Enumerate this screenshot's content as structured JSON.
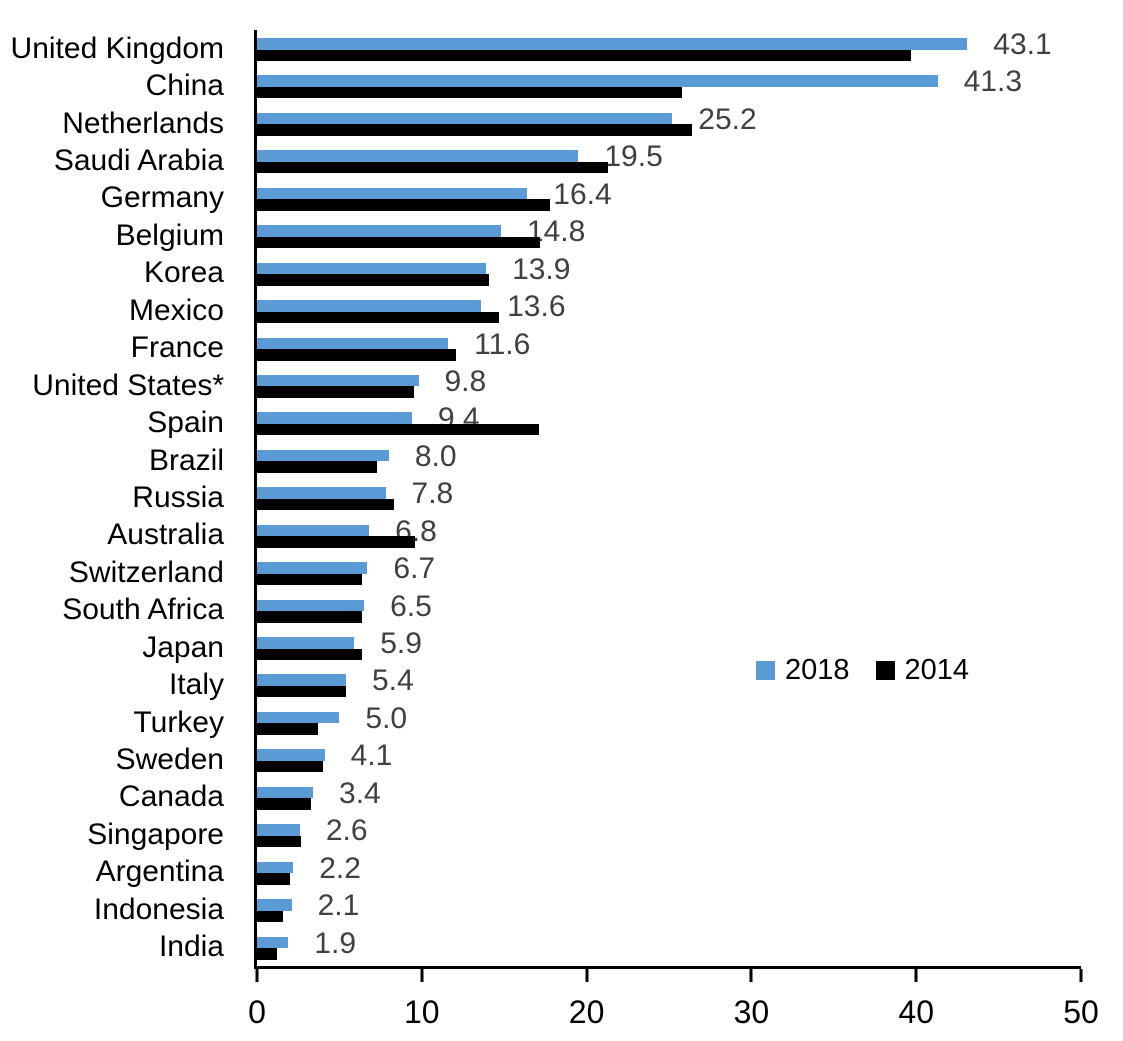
{
  "chart_data": {
    "type": "bar",
    "orientation": "horizontal",
    "title": "",
    "categories": [
      "United Kingdom",
      "China",
      "Netherlands",
      "Saudi Arabia",
      "Germany",
      "Belgium",
      "Korea",
      "Mexico",
      "France",
      "United States*",
      "Spain",
      "Brazil",
      "Russia",
      "Australia",
      "Switzerland",
      "South Africa",
      "Japan",
      "Italy",
      "Turkey",
      "Sweden",
      "Canada",
      "Singapore",
      "Argentina",
      "Indonesia",
      "India"
    ],
    "series": [
      {
        "name": "2018",
        "color": "#5B9BD5",
        "data_labels_shown": true,
        "values": [
          43.1,
          41.3,
          25.2,
          19.5,
          16.4,
          14.8,
          13.9,
          13.6,
          11.6,
          9.8,
          9.4,
          8.0,
          7.8,
          6.8,
          6.7,
          6.5,
          5.9,
          5.4,
          5.0,
          4.1,
          3.4,
          2.6,
          2.2,
          2.1,
          1.9
        ]
      },
      {
        "name": "2014",
        "color": "#000000",
        "data_labels_shown": false,
        "values": [
          39.7,
          25.8,
          26.4,
          21.3,
          17.8,
          17.2,
          14.1,
          14.7,
          12.1,
          9.5,
          17.1,
          7.3,
          8.3,
          9.6,
          6.4,
          6.4,
          6.4,
          5.4,
          3.7,
          4.0,
          3.3,
          2.7,
          2.0,
          1.6,
          1.2
        ]
      }
    ],
    "xlim": [
      0,
      50
    ],
    "x_ticks": [
      "0",
      "10",
      "20",
      "30",
      "40",
      "50"
    ],
    "grid": false,
    "legend": {
      "entries": [
        "2018",
        "2014"
      ],
      "position": "middle-right"
    },
    "value_label_color": "#404040",
    "axis_color": "#000000"
  }
}
